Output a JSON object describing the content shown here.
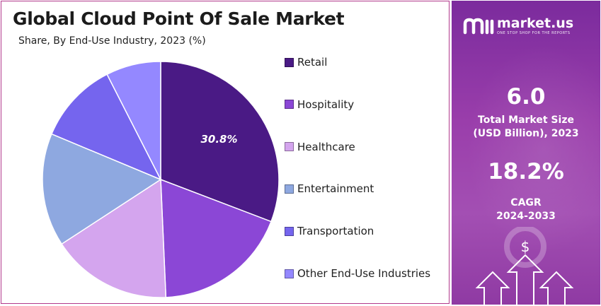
{
  "header": {
    "title": "Global Cloud Point Of Sale Market",
    "subtitle": "Share, By End-Use Industry, 2023 (%)"
  },
  "chart_data": {
    "type": "pie",
    "title": "Global Cloud Point Of Sale Market",
    "subtitle": "Share, By End-Use Industry, 2023 (%)",
    "legend_position": "right",
    "slices": [
      {
        "label": "Retail",
        "value": 30.8,
        "color": "#4a1a85",
        "data_label": "30.8%"
      },
      {
        "label": "Hospitality",
        "value": 18.5,
        "color": "#8b47d6",
        "data_label": ""
      },
      {
        "label": "Healthcare",
        "value": 16.5,
        "color": "#d4a5ee",
        "data_label": ""
      },
      {
        "label": "Entertainment",
        "value": 15.5,
        "color": "#8ea8e0",
        "data_label": ""
      },
      {
        "label": "Transportation",
        "value": 11.2,
        "color": "#7565ee",
        "data_label": ""
      },
      {
        "label": "Other End-Use Industries",
        "value": 7.5,
        "color": "#9488ff",
        "data_label": ""
      }
    ]
  },
  "sidebar": {
    "brand_name": "market.us",
    "brand_tagline": "ONE STOP SHOP FOR THE REPORTS",
    "market_size_value": "6.0",
    "market_size_label_line1": "Total Market Size",
    "market_size_label_line2": "(USD Billion), 2023",
    "cagr_value": "18.2%",
    "cagr_label_line1": "CAGR",
    "cagr_label_line2": "2024-2033",
    "dollar_symbol": "$"
  }
}
